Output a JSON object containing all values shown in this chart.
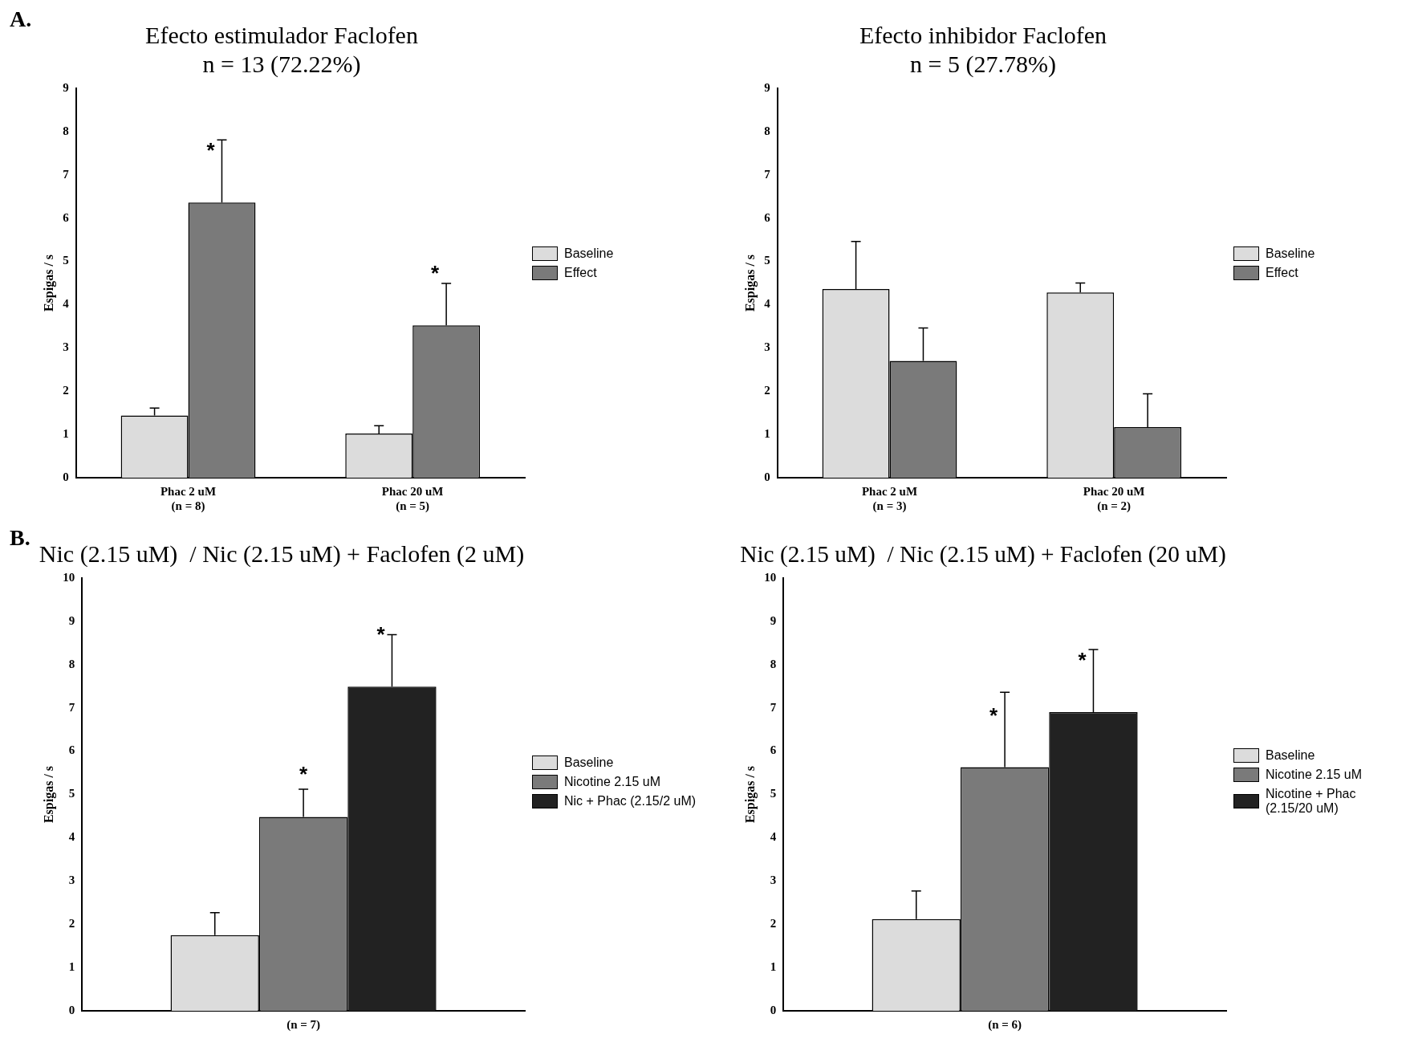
{
  "chart_data": [
    {
      "type": "bar",
      "title": "Efecto estimulador Faclofen\nn = 13 (72.22%)",
      "ylabel": "Espigas / s",
      "categories": [
        "Phac 2 uM\n(n = 8)",
        "Phac 20 uM\n(n = 5)"
      ],
      "series": [
        {
          "name": "Baseline",
          "color": "#dcdcdc",
          "values": [
            1.44,
            1.02
          ],
          "errors": [
            [
              1.44,
              1.61
            ],
            [
              1.02,
              1.2
            ]
          ]
        },
        {
          "name": "Effect",
          "color": "#7a7a7a",
          "values": [
            6.36,
            3.52
          ],
          "errors": [
            [
              6.36,
              7.81
            ],
            [
              3.52,
              4.49
            ]
          ],
          "value_labels": [
            "*",
            "*"
          ]
        }
      ],
      "ylim": [
        0,
        9
      ],
      "yticks": [
        0,
        1,
        2,
        3,
        4,
        5,
        6,
        7,
        8,
        9
      ],
      "grid": false,
      "legend": "right",
      "annotations": [
        "A."
      ]
    },
    {
      "type": "bar",
      "title": "Efecto inhibidor Faclofen\nn = 5 (27.78%)",
      "ylabel": "Espigas / s",
      "categories": [
        "Phac 2 uM\n(n = 3)",
        "Phac 20 uM\n(n = 2)"
      ],
      "series": [
        {
          "name": "Baseline",
          "color": "#dcdcdc",
          "values": [
            4.36,
            4.28
          ],
          "errors": [
            [
              4.36,
              5.46
            ],
            [
              4.28,
              4.5
            ]
          ]
        },
        {
          "name": "Effect",
          "color": "#7a7a7a",
          "values": [
            2.7,
            1.17
          ],
          "errors": [
            [
              2.7,
              3.46
            ],
            [
              1.17,
              1.94
            ]
          ]
        }
      ],
      "ylim": [
        0,
        9
      ],
      "yticks": [
        0,
        1,
        2,
        3,
        4,
        5,
        6,
        7,
        8,
        9
      ],
      "grid": false,
      "legend": "right"
    },
    {
      "type": "bar",
      "title": "Nic (2.15 uM)  / Nic (2.15 uM) + Faclofen (2 uM)",
      "ylabel": "Espigas / s",
      "categories": [
        "(n = 7)"
      ],
      "series": [
        {
          "name": "Baseline",
          "color": "#dcdcdc",
          "values": [
            1.75
          ],
          "errors": [
            [
              1.75,
              2.27
            ]
          ]
        },
        {
          "name": "Nicotine 2.15 uM",
          "color": "#7a7a7a",
          "values": [
            4.48
          ],
          "errors": [
            [
              4.48,
              5.12
            ]
          ],
          "value_labels": [
            "*"
          ]
        },
        {
          "name": "Nic + Phac (2.15/2 uM)",
          "color": "#222222",
          "values": [
            7.49
          ],
          "errors": [
            [
              7.49,
              8.69
            ]
          ],
          "value_labels": [
            "*"
          ]
        }
      ],
      "ylim": [
        0,
        10
      ],
      "yticks": [
        0,
        1,
        2,
        3,
        4,
        5,
        6,
        7,
        8,
        9,
        10
      ],
      "grid": false,
      "legend": "right",
      "annotations": [
        "B."
      ]
    },
    {
      "type": "bar",
      "title": "Nic (2.15 uM)  / Nic (2.15 uM) + Faclofen (20 uM)",
      "ylabel": "Espigas / s",
      "categories": [
        "(n = 6)"
      ],
      "series": [
        {
          "name": "Baseline",
          "color": "#dcdcdc",
          "values": [
            2.12
          ],
          "errors": [
            [
              2.12,
              2.77
            ]
          ]
        },
        {
          "name": "Nicotine 2.15 uM",
          "color": "#7a7a7a",
          "values": [
            5.63
          ],
          "errors": [
            [
              5.63,
              7.36
            ]
          ],
          "value_labels": [
            "*"
          ]
        },
        {
          "name": "Nicotine + Phac (2.15/20 uM)",
          "color": "#222222",
          "values": [
            6.9
          ],
          "errors": [
            [
              6.9,
              8.35
            ]
          ],
          "value_labels": [
            "*"
          ]
        }
      ],
      "ylim": [
        0,
        10
      ],
      "yticks": [
        0,
        1,
        2,
        3,
        4,
        5,
        6,
        7,
        8,
        9,
        10
      ],
      "grid": false,
      "legend": "right"
    }
  ]
}
